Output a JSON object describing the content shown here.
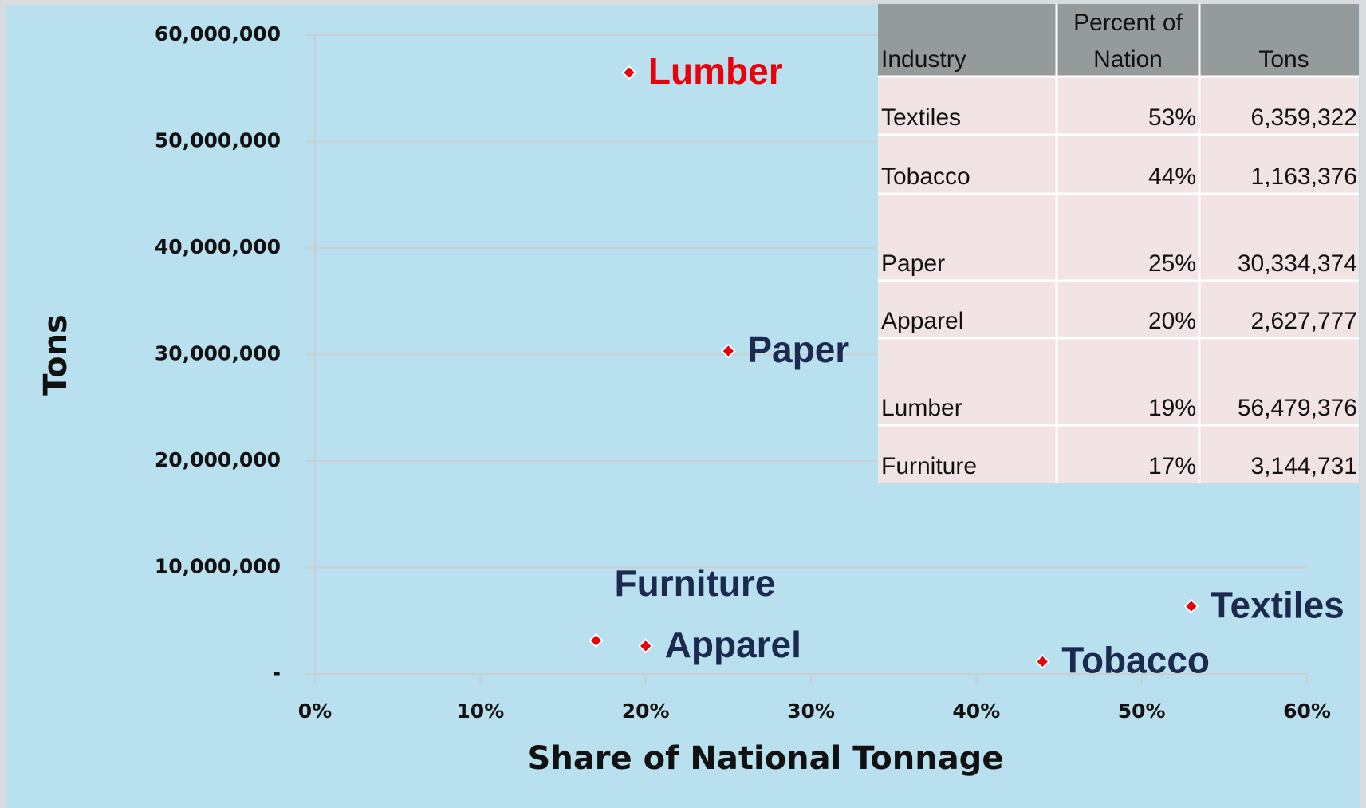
{
  "chart_data": {
    "type": "scatter",
    "xlabel": "Share of National Tonnage",
    "ylabel": "Tons",
    "xlim": [
      0,
      60
    ],
    "xticks": [
      {
        "value": 0,
        "label": "0%"
      },
      {
        "value": 10,
        "label": "10%"
      },
      {
        "value": 20,
        "label": "20%"
      },
      {
        "value": 30,
        "label": "30%"
      },
      {
        "value": 40,
        "label": "40%"
      },
      {
        "value": 50,
        "label": "50%"
      },
      {
        "value": 60,
        "label": "60%"
      }
    ],
    "ylim": [
      0,
      60000000
    ],
    "yticks": [
      {
        "value": 0,
        "label": "-"
      },
      {
        "value": 10000000,
        "label": "10,000,000"
      },
      {
        "value": 20000000,
        "label": "20,000,000"
      },
      {
        "value": 30000000,
        "label": "30,000,000"
      },
      {
        "value": 40000000,
        "label": "40,000,000"
      },
      {
        "value": 50000000,
        "label": "50,000,000"
      },
      {
        "value": 60000000,
        "label": "60,000,000"
      }
    ],
    "grid": true,
    "point_color": "#e8000b",
    "labels": [
      "Textiles",
      "Tobacco",
      "Paper",
      "Apparel",
      "Lumber",
      "Furniture"
    ],
    "label_colors": [
      "#1b2a4e",
      "#1b2a4e",
      "#1b2a4e",
      "#1b2a4e",
      "#e8000b",
      "#1b2a4e"
    ],
    "x": [
      53,
      44,
      25,
      20,
      19,
      17
    ],
    "x_labels": [
      "53%",
      "44%",
      "25%",
      "20%",
      "19%",
      "17%"
    ],
    "values": [
      6359322,
      1163376,
      30334374,
      2627777,
      56479376,
      3144731
    ],
    "value_labels": [
      "6,359,322",
      "1,163,376",
      "30,334,374",
      "2,627,777",
      "56,479,376",
      "3,144,731"
    ],
    "table_header": [
      "Industry",
      "Percent of Nation",
      "Tons"
    ]
  }
}
